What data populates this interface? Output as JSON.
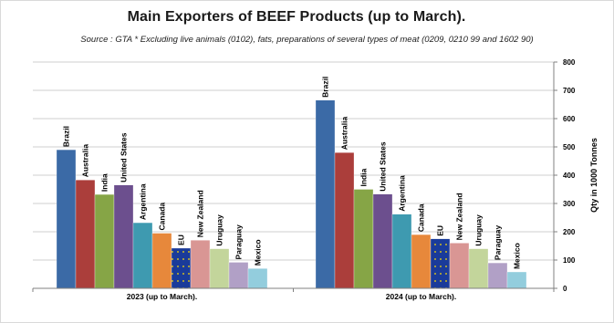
{
  "chart_data": {
    "type": "bar",
    "title": "Main Exporters of BEEF Products (up to March).",
    "subtitle": "Source : GTA * Excluding live animals (0102), fats, preparations of several types of meat (0209, 0210 99 and 1602 90)",
    "categories": [
      "2023 (up to March).",
      "2024 (up to March)."
    ],
    "series": [
      {
        "name": "Brazil",
        "color": "#3b6aa6",
        "values": [
          490,
          665
        ]
      },
      {
        "name": "Australia",
        "color": "#ab3e3b",
        "values": [
          383,
          480
        ]
      },
      {
        "name": "India",
        "color": "#86a546",
        "values": [
          332,
          350
        ]
      },
      {
        "name": "United States",
        "color": "#6c4f8e",
        "values": [
          365,
          333
        ]
      },
      {
        "name": "Argentina",
        "color": "#3e9ab0",
        "values": [
          232,
          262
        ]
      },
      {
        "name": "Canada",
        "color": "#e7883b",
        "values": [
          195,
          190
        ]
      },
      {
        "name": "EU",
        "color": "#1a3b9a",
        "values": [
          142,
          175
        ]
      },
      {
        "name": "New Zealand",
        "color": "#d99694",
        "values": [
          170,
          160
        ]
      },
      {
        "name": "Uruguay",
        "color": "#c3d59b",
        "values": [
          140,
          140
        ]
      },
      {
        "name": "Paraguay",
        "color": "#b1a0c6",
        "values": [
          92,
          90
        ]
      },
      {
        "name": "Mexico",
        "color": "#93cddd",
        "values": [
          70,
          58
        ]
      }
    ],
    "ylabel": "Qty in 1000 Tonnes",
    "ylim": [
      0,
      800
    ],
    "yticks": [
      0,
      100,
      200,
      300,
      400,
      500,
      600,
      700,
      800
    ],
    "y_axis_side": "right",
    "grid": true,
    "legend": "none (labels above bars)"
  }
}
